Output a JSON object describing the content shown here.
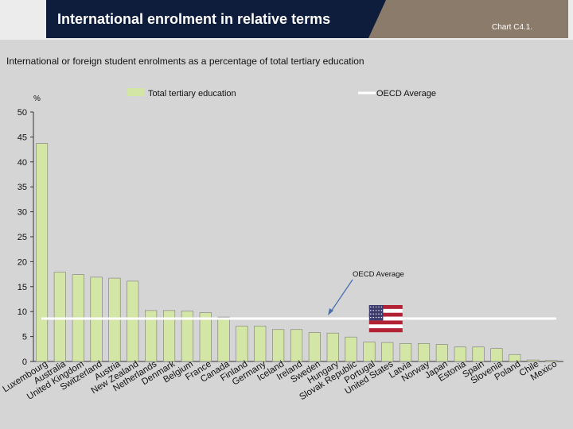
{
  "header": {
    "title": "International enrolment in relative terms",
    "chart_ref": "Chart C4.1."
  },
  "chart_data": {
    "type": "bar",
    "subtitle": "International or foreign student enrolments as a percentage of total tertiary education",
    "ylabel": "%",
    "ylim": [
      0,
      50
    ],
    "yticks": [
      0,
      5,
      10,
      15,
      20,
      25,
      30,
      35,
      40,
      45,
      50
    ],
    "categories": [
      "Luxembourg",
      "Australia",
      "United Kingdom",
      "Switzerland",
      "Austria",
      "New Zealand",
      "Netherlands",
      "Denmark",
      "Belgium",
      "France",
      "Canada",
      "Finland",
      "Germany",
      "Iceland",
      "Ireland",
      "Sweden",
      "Hungary",
      "Slovak Republic",
      "Portugal",
      "United States",
      "Latvia",
      "Norway",
      "Japan",
      "Estonia",
      "Spain",
      "Slovenia",
      "Poland",
      "Chile",
      "Mexico"
    ],
    "series": [
      {
        "name": "Total tertiary education",
        "color": "#d4e6a6",
        "values": [
          43.7,
          17.9,
          17.4,
          16.9,
          16.7,
          16.1,
          10.2,
          10.2,
          10.1,
          9.8,
          8.9,
          7.1,
          7.1,
          6.4,
          6.4,
          5.8,
          5.7,
          4.9,
          3.9,
          3.8,
          3.6,
          3.6,
          3.4,
          2.9,
          2.9,
          2.6,
          1.4,
          0.3,
          0.2
        ]
      }
    ],
    "reference_line": {
      "name": "OECD Average",
      "value": 8.6,
      "color": "#ffffff"
    },
    "annotation": "OECD Average",
    "highlight_category": "United States",
    "highlight_icon": "us-flag-icon"
  }
}
